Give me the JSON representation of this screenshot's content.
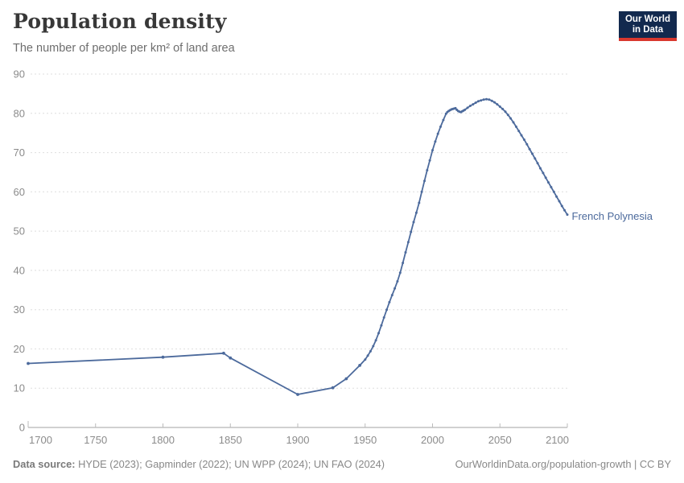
{
  "header": {
    "title": "Population density",
    "subtitle": "The number of people per km² of land area"
  },
  "logo": {
    "line1": "Our World",
    "line2": "in Data"
  },
  "footer": {
    "source_label": "Data source:",
    "source_text": " HYDE (2023); Gapminder (2022); UN WPP (2024); UN FAO (2024)",
    "right_text": "OurWorldinData.org/population-growth | CC BY"
  },
  "chart_data": {
    "type": "line",
    "title": "Population density",
    "subtitle": "The number of people per km² of land area",
    "xlabel": "",
    "ylabel": "people per km² of land area",
    "xlim": [
      1700,
      2100
    ],
    "ylim": [
      0,
      90
    ],
    "x_ticks": [
      1700,
      1750,
      1800,
      1850,
      1900,
      1950,
      2000,
      2050,
      2100
    ],
    "y_ticks": [
      0,
      10,
      20,
      30,
      40,
      50,
      60,
      70,
      80,
      90
    ],
    "grid": "horizontal-dashed",
    "legend_position": "end-of-line-label",
    "colors": {
      "line": "#4c6a9c",
      "axis": "#a3a3a3",
      "gridline": "#dedede",
      "tick_label": "#8b8b8b"
    },
    "series": [
      {
        "name": "French Polynesia",
        "color": "#4c6a9c",
        "points": [
          [
            1700,
            16.3
          ],
          [
            1800,
            17.9
          ],
          [
            1845,
            18.9
          ],
          [
            1850,
            17.7
          ],
          [
            1900,
            8.4
          ],
          [
            1926,
            10.1
          ],
          [
            1936,
            12.4
          ],
          [
            1946,
            15.8
          ],
          [
            1950,
            17.3
          ],
          [
            1952,
            18.3
          ],
          [
            1954,
            19.4
          ],
          [
            1956,
            20.7
          ],
          [
            1958,
            22.2
          ],
          [
            1960,
            24.0
          ],
          [
            1962,
            26.0
          ],
          [
            1964,
            28.0
          ],
          [
            1966,
            30.0
          ],
          [
            1968,
            31.9
          ],
          [
            1970,
            33.7
          ],
          [
            1972,
            35.4
          ],
          [
            1974,
            37.2
          ],
          [
            1976,
            39.4
          ],
          [
            1978,
            41.9
          ],
          [
            1980,
            44.6
          ],
          [
            1982,
            47.2
          ],
          [
            1984,
            49.8
          ],
          [
            1986,
            52.3
          ],
          [
            1988,
            54.7
          ],
          [
            1990,
            57.2
          ],
          [
            1992,
            60.0
          ],
          [
            1994,
            62.8
          ],
          [
            1996,
            65.5
          ],
          [
            1998,
            68.0
          ],
          [
            2000,
            70.6
          ],
          [
            2002,
            72.8
          ],
          [
            2004,
            74.8
          ],
          [
            2006,
            76.6
          ],
          [
            2008,
            78.3
          ],
          [
            2010,
            79.9
          ],
          [
            2011,
            80.3
          ],
          [
            2012,
            80.6
          ],
          [
            2013,
            80.8
          ],
          [
            2014,
            81.0
          ],
          [
            2015,
            81.1
          ],
          [
            2016,
            81.2
          ],
          [
            2017,
            81.3
          ],
          [
            2018,
            80.9
          ],
          [
            2019,
            80.6
          ],
          [
            2020,
            80.4
          ],
          [
            2021,
            80.3
          ],
          [
            2022,
            80.5
          ],
          [
            2023,
            80.7
          ],
          [
            2024,
            80.9
          ],
          [
            2026,
            81.4
          ],
          [
            2028,
            81.9
          ],
          [
            2030,
            82.3
          ],
          [
            2032,
            82.7
          ],
          [
            2034,
            83.1
          ],
          [
            2036,
            83.3
          ],
          [
            2038,
            83.5
          ],
          [
            2040,
            83.6
          ],
          [
            2042,
            83.5
          ],
          [
            2044,
            83.2
          ],
          [
            2046,
            82.8
          ],
          [
            2048,
            82.3
          ],
          [
            2050,
            81.7
          ],
          [
            2052,
            81.1
          ],
          [
            2054,
            80.4
          ],
          [
            2056,
            79.6
          ],
          [
            2058,
            78.7
          ],
          [
            2060,
            77.7
          ],
          [
            2062,
            76.6
          ],
          [
            2064,
            75.5
          ],
          [
            2066,
            74.4
          ],
          [
            2068,
            73.3
          ],
          [
            2070,
            72.1
          ],
          [
            2072,
            70.9
          ],
          [
            2074,
            69.7
          ],
          [
            2076,
            68.5
          ],
          [
            2078,
            67.3
          ],
          [
            2080,
            66.0
          ],
          [
            2082,
            64.8
          ],
          [
            2084,
            63.6
          ],
          [
            2086,
            62.4
          ],
          [
            2088,
            61.2
          ],
          [
            2090,
            60.0
          ],
          [
            2092,
            58.8
          ],
          [
            2094,
            57.6
          ],
          [
            2096,
            56.4
          ],
          [
            2098,
            55.3
          ],
          [
            2100,
            54.2
          ]
        ]
      }
    ]
  }
}
